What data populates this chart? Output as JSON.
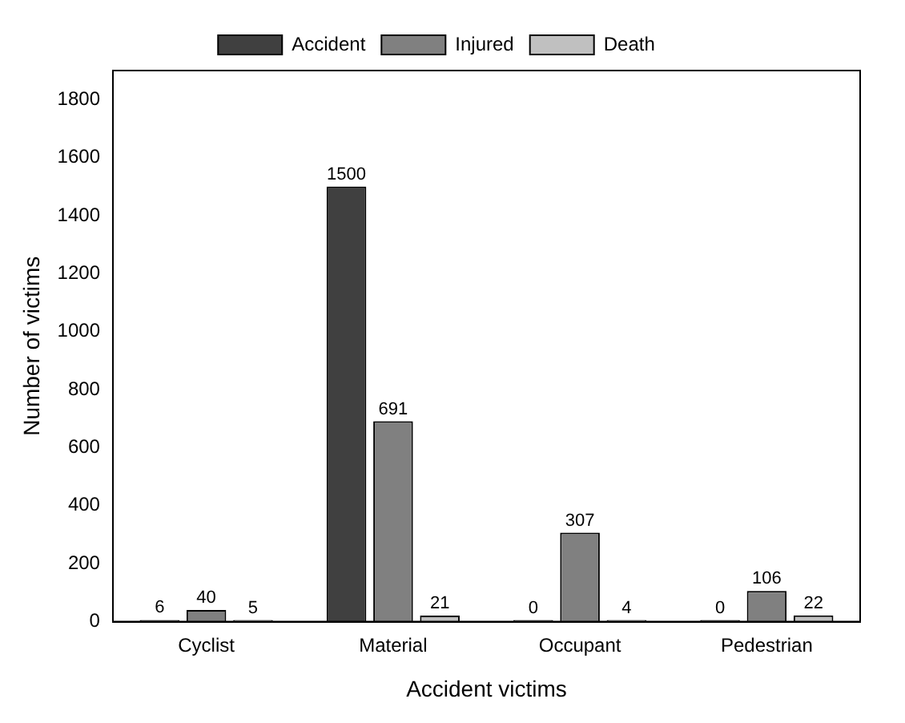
{
  "chart_data": {
    "type": "bar",
    "xlabel": "Accident victims",
    "ylabel": "Number of victims",
    "categories": [
      "Cyclist",
      "Material",
      "Occupant",
      "Pedestrian"
    ],
    "series": [
      {
        "name": "Accident",
        "color": "#404040",
        "values": [
          6,
          1500,
          0,
          0
        ]
      },
      {
        "name": "Injured",
        "color": "#808080",
        "values": [
          40,
          691,
          307,
          106
        ]
      },
      {
        "name": "Death",
        "color": "#c0c0c0",
        "values": [
          5,
          21,
          4,
          22
        ]
      }
    ],
    "ylim": [
      0,
      1900
    ],
    "yticks": [
      0,
      200,
      400,
      600,
      800,
      1000,
      1200,
      1400,
      1600,
      1800
    ],
    "grid": false,
    "legend": "top",
    "data_labels": true
  }
}
